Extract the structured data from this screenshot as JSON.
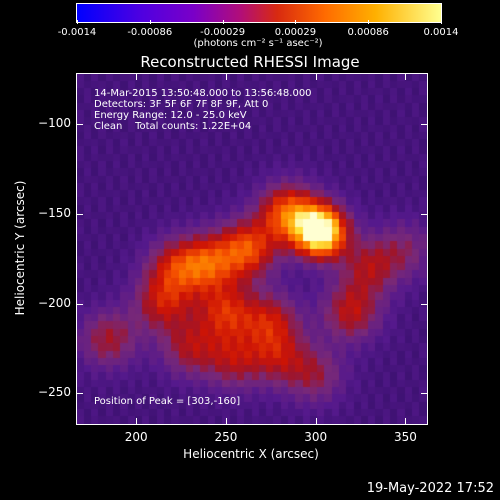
{
  "colorbar": {
    "tick_labels": [
      "-0.0014",
      "-0.00086",
      "-0.00029",
      "0.00029",
      "0.00086",
      "0.0014"
    ],
    "unit_label": "(photons cm⁻² s⁻¹ asec⁻²)"
  },
  "chart_data": {
    "type": "heatmap",
    "title": "Reconstructed RHESSI Image",
    "xlabel": "Heliocentric X (arcsec)",
    "ylabel": "Heliocentric Y (arcsec)",
    "xlim": [
      167,
      362
    ],
    "ylim": [
      -267,
      -72
    ],
    "zlim": [
      -0.0014,
      0.0014
    ],
    "x_ticks": [
      200,
      250,
      300,
      350
    ],
    "y_ticks": [
      -100,
      -150,
      -200,
      -250
    ],
    "colormap": "rhessi (blue-purple-red-orange-yellow-white)",
    "sources": [
      {
        "x": 303,
        "y": -160,
        "amplitude": 1.0
      },
      {
        "x": 285,
        "y": -150,
        "amplitude": 0.55
      },
      {
        "x": 262,
        "y": -170,
        "amplitude": 0.5
      },
      {
        "x": 240,
        "y": -178,
        "amplitude": 0.45
      },
      {
        "x": 222,
        "y": -180,
        "amplitude": 0.35
      },
      {
        "x": 215,
        "y": -200,
        "amplitude": 0.35
      },
      {
        "x": 250,
        "y": -205,
        "amplitude": 0.4
      },
      {
        "x": 275,
        "y": -210,
        "amplitude": 0.35
      },
      {
        "x": 320,
        "y": -205,
        "amplitude": 0.35
      },
      {
        "x": 230,
        "y": -225,
        "amplitude": 0.3
      },
      {
        "x": 255,
        "y": -232,
        "amplitude": 0.3
      },
      {
        "x": 280,
        "y": -230,
        "amplitude": 0.28
      },
      {
        "x": 300,
        "y": -240,
        "amplitude": 0.25
      },
      {
        "x": 185,
        "y": -220,
        "amplitude": 0.3
      },
      {
        "x": 330,
        "y": -180,
        "amplitude": 0.3
      },
      {
        "x": 350,
        "y": -170,
        "amplitude": 0.2
      }
    ],
    "info_lines": [
      "14-Mar-2015 13:50:48.000 to 13:56:48.000",
      "Detectors: 3F 5F 6F 7F 8F 9F, Att 0",
      "Energy Range: 12.0 - 25.0 keV",
      "Clean    Total counts: 1.22E+04"
    ],
    "peak_label": "Position of Peak = [303,-160]"
  },
  "footer_date": "19-May-2022 17:52"
}
